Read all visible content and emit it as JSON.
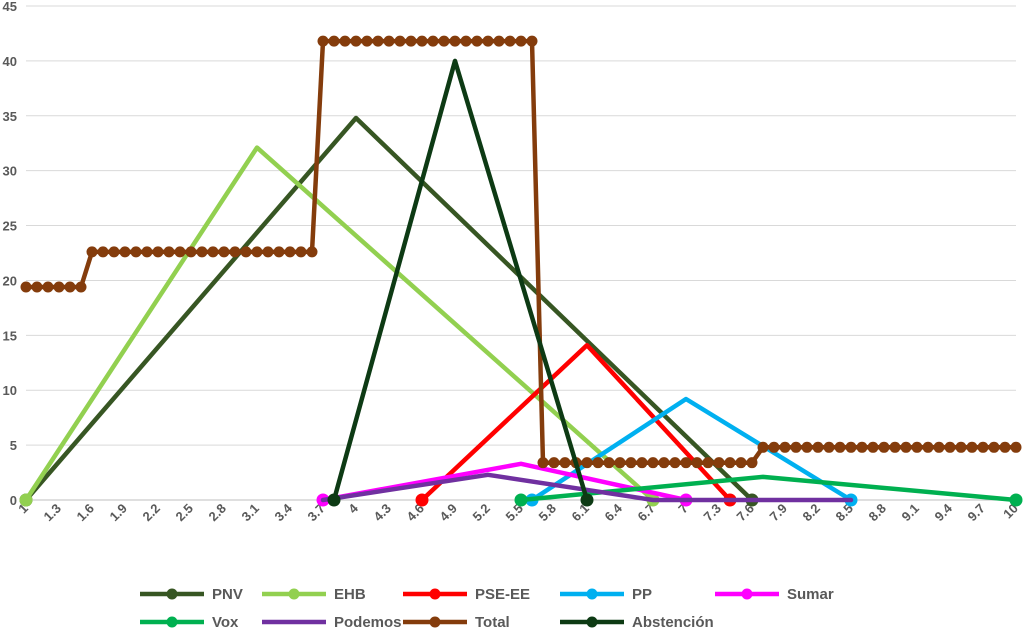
{
  "chart_data": {
    "type": "line",
    "title": "",
    "xlabel": "",
    "ylabel": "",
    "ylim": [
      0,
      45
    ],
    "y_ticks": [
      0,
      5,
      10,
      15,
      20,
      25,
      30,
      35,
      40,
      45
    ],
    "x_tick_labels": [
      "1",
      "1.3",
      "1.6",
      "1.9",
      "2.2",
      "2.5",
      "2.8",
      "3.1",
      "3.4",
      "3.7",
      "4",
      "4.3",
      "4.6",
      "4.9",
      "5.2",
      "5.5",
      "5.8",
      "6.1",
      "6.4",
      "6.7",
      "7",
      "7.3",
      "7.6",
      "7.9",
      "8.2",
      "8.5",
      "8.8",
      "9.1",
      "9.4",
      "9.7",
      "10"
    ],
    "xlim": [
      1,
      10
    ],
    "grid": true,
    "legend_position": "bottom",
    "series": [
      {
        "name": "PNV",
        "color": "#375623",
        "markers": "ends",
        "points": [
          [
            1,
            0
          ],
          [
            4,
            34.8
          ],
          [
            7.6,
            0
          ]
        ]
      },
      {
        "name": "EHB",
        "color": "#92D050",
        "markers": "ends",
        "points": [
          [
            1,
            0
          ],
          [
            3.1,
            32.1
          ],
          [
            6.7,
            0
          ]
        ]
      },
      {
        "name": "PSE-EE",
        "color": "#FF0000",
        "markers": "ends",
        "points": [
          [
            4.6,
            0
          ],
          [
            6.1,
            14.1
          ],
          [
            7.4,
            0
          ]
        ]
      },
      {
        "name": "PP",
        "color": "#00B0F0",
        "markers": "ends",
        "points": [
          [
            5.6,
            0
          ],
          [
            7,
            9.2
          ],
          [
            8.5,
            0
          ]
        ]
      },
      {
        "name": "Sumar",
        "color": "#FF00FF",
        "markers": "ends",
        "points": [
          [
            3.7,
            0
          ],
          [
            5.5,
            3.3
          ],
          [
            7,
            0
          ]
        ]
      },
      {
        "name": "Vox",
        "color": "#00B050",
        "markers": "ends",
        "points": [
          [
            5.5,
            0
          ],
          [
            7.7,
            2.1
          ],
          [
            10,
            0
          ]
        ]
      },
      {
        "name": "Podemos",
        "color": "#7030A0",
        "markers": "none",
        "points": [
          [
            3.7,
            0
          ],
          [
            5.2,
            2.3
          ],
          [
            6.7,
            0
          ],
          [
            8.5,
            0
          ]
        ]
      },
      {
        "name": "Total",
        "color": "#843C0C",
        "markers": "all",
        "points": [
          [
            1,
            19.4
          ],
          [
            1.1,
            19.4
          ],
          [
            1.2,
            19.4
          ],
          [
            1.3,
            19.4
          ],
          [
            1.4,
            19.4
          ],
          [
            1.5,
            19.4
          ],
          [
            1.6,
            22.6
          ],
          [
            1.7,
            22.6
          ],
          [
            1.8,
            22.6
          ],
          [
            1.9,
            22.6
          ],
          [
            2,
            22.6
          ],
          [
            2.1,
            22.6
          ],
          [
            2.2,
            22.6
          ],
          [
            2.3,
            22.6
          ],
          [
            2.4,
            22.6
          ],
          [
            2.5,
            22.6
          ],
          [
            2.6,
            22.6
          ],
          [
            2.7,
            22.6
          ],
          [
            2.8,
            22.6
          ],
          [
            2.9,
            22.6
          ],
          [
            3,
            22.6
          ],
          [
            3.1,
            22.6
          ],
          [
            3.2,
            22.6
          ],
          [
            3.3,
            22.6
          ],
          [
            3.4,
            22.6
          ],
          [
            3.5,
            22.6
          ],
          [
            3.6,
            22.6
          ],
          [
            3.7,
            41.8
          ],
          [
            3.8,
            41.8
          ],
          [
            3.9,
            41.8
          ],
          [
            4,
            41.8
          ],
          [
            4.1,
            41.8
          ],
          [
            4.2,
            41.8
          ],
          [
            4.3,
            41.8
          ],
          [
            4.4,
            41.8
          ],
          [
            4.5,
            41.8
          ],
          [
            4.6,
            41.8
          ],
          [
            4.7,
            41.8
          ],
          [
            4.8,
            41.8
          ],
          [
            4.9,
            41.8
          ],
          [
            5,
            41.8
          ],
          [
            5.1,
            41.8
          ],
          [
            5.2,
            41.8
          ],
          [
            5.3,
            41.8
          ],
          [
            5.4,
            41.8
          ],
          [
            5.5,
            41.8
          ],
          [
            5.6,
            41.8
          ],
          [
            5.7,
            3.4
          ],
          [
            5.8,
            3.4
          ],
          [
            5.9,
            3.4
          ],
          [
            6,
            3.4
          ],
          [
            6.1,
            3.4
          ],
          [
            6.2,
            3.4
          ],
          [
            6.3,
            3.4
          ],
          [
            6.4,
            3.4
          ],
          [
            6.5,
            3.4
          ],
          [
            6.6,
            3.4
          ],
          [
            6.7,
            3.4
          ],
          [
            6.8,
            3.4
          ],
          [
            6.9,
            3.4
          ],
          [
            7,
            3.4
          ],
          [
            7.1,
            3.4
          ],
          [
            7.2,
            3.4
          ],
          [
            7.3,
            3.4
          ],
          [
            7.4,
            3.4
          ],
          [
            7.5,
            3.4
          ],
          [
            7.6,
            3.4
          ],
          [
            7.7,
            4.8
          ],
          [
            7.8,
            4.8
          ],
          [
            7.9,
            4.8
          ],
          [
            8,
            4.8
          ],
          [
            8.1,
            4.8
          ],
          [
            8.2,
            4.8
          ],
          [
            8.3,
            4.8
          ],
          [
            8.4,
            4.8
          ],
          [
            8.5,
            4.8
          ],
          [
            8.6,
            4.8
          ],
          [
            8.7,
            4.8
          ],
          [
            8.8,
            4.8
          ],
          [
            8.9,
            4.8
          ],
          [
            9,
            4.8
          ],
          [
            9.1,
            4.8
          ],
          [
            9.2,
            4.8
          ],
          [
            9.3,
            4.8
          ],
          [
            9.4,
            4.8
          ],
          [
            9.5,
            4.8
          ],
          [
            9.6,
            4.8
          ],
          [
            9.7,
            4.8
          ],
          [
            9.8,
            4.8
          ],
          [
            9.9,
            4.8
          ],
          [
            10,
            4.8
          ]
        ]
      },
      {
        "name": "Abstención",
        "color": "#0D3A14",
        "markers": "ends",
        "points": [
          [
            3.8,
            0
          ],
          [
            4.9,
            40
          ],
          [
            6.1,
            0
          ]
        ]
      }
    ]
  }
}
